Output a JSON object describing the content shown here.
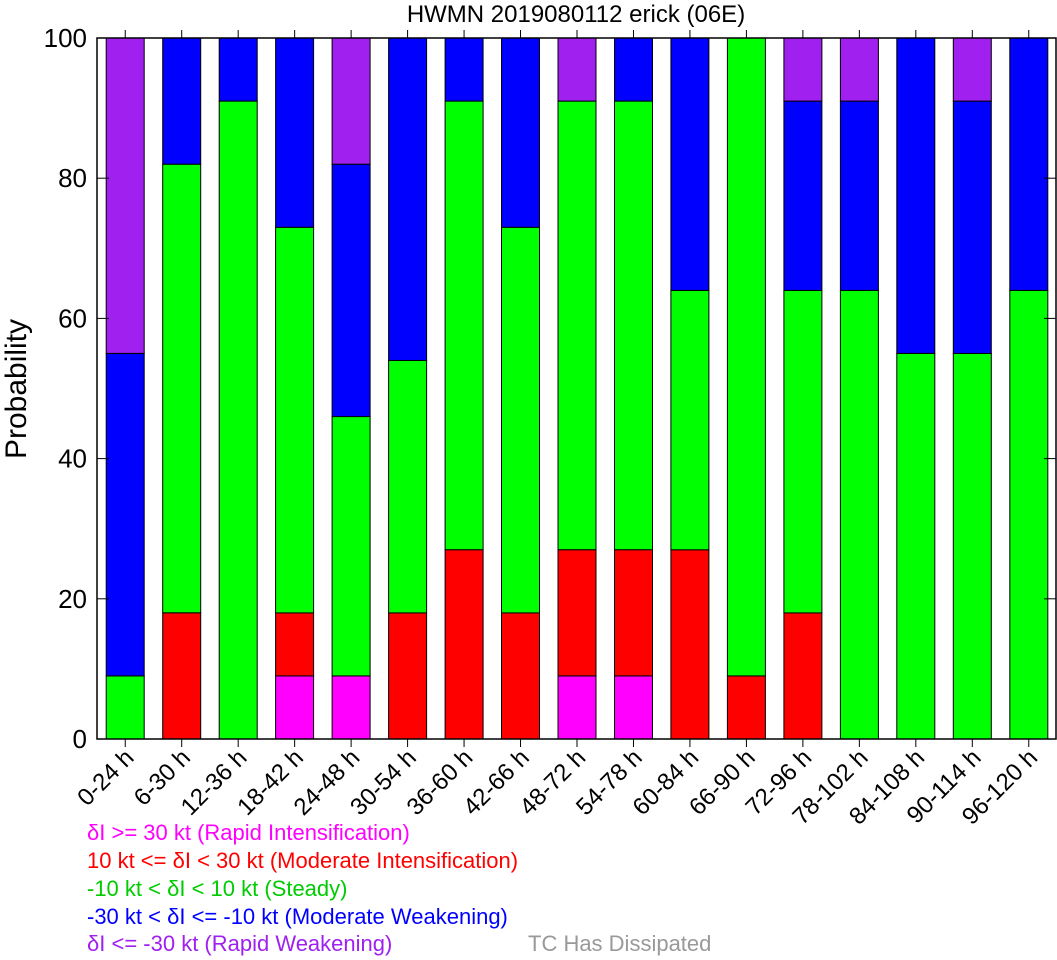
{
  "chart_data": {
    "type": "bar",
    "stacked": true,
    "title": "HWMN 2019080112 erick (06E)",
    "ylabel": "Probability",
    "xlabel": "",
    "ylim": [
      0,
      100
    ],
    "yticks": [
      0,
      20,
      40,
      60,
      80,
      100
    ],
    "grid": false,
    "categories": [
      "0-24 h",
      "6-30 h",
      "12-36 h",
      "18-42 h",
      "24-48 h",
      "30-54 h",
      "36-60 h",
      "42-66 h",
      "48-72 h",
      "54-78 h",
      "60-84 h",
      "66-90 h",
      "72-96 h",
      "78-102 h",
      "84-108 h",
      "90-114 h",
      "96-120 h"
    ],
    "series": [
      {
        "name": "δI >= 30 kt (Rapid Intensification)",
        "color": "#ff00ff",
        "values": [
          0,
          0,
          0,
          9,
          9,
          0,
          0,
          0,
          9,
          9,
          0,
          0,
          0,
          0,
          0,
          0,
          0
        ]
      },
      {
        "name": "10 kt <= δI < 30 kt (Moderate Intensification)",
        "color": "#ff0000",
        "values": [
          0,
          18,
          0,
          9,
          0,
          18,
          27,
          18,
          18,
          18,
          27,
          9,
          18,
          0,
          0,
          0,
          0
        ]
      },
      {
        "name": "-10 kt < δI < 10 kt (Steady)",
        "color": "#00ff00",
        "values": [
          9,
          64,
          91,
          55,
          37,
          36,
          64,
          55,
          64,
          64,
          37,
          91,
          46,
          64,
          55,
          55,
          64
        ]
      },
      {
        "name": "-30 kt < δI <= -10 kt (Moderate Weakening)",
        "color": "#0000ff",
        "values": [
          46,
          18,
          9,
          27,
          36,
          46,
          9,
          27,
          0,
          9,
          36,
          0,
          27,
          27,
          45,
          36,
          36
        ]
      },
      {
        "name": "δI <= -30 kt (Rapid Weakening)",
        "color": "#a020f0",
        "values": [
          45,
          0,
          0,
          0,
          18,
          0,
          0,
          0,
          9,
          0,
          0,
          0,
          9,
          9,
          0,
          9,
          0
        ]
      }
    ]
  },
  "legend": {
    "items": [
      {
        "text": "δI >= 30 kt (Rapid Intensification)",
        "color": "#ff00ff"
      },
      {
        "text": "10 kt <= δI < 30 kt (Moderate Intensification)",
        "color": "#ff0000"
      },
      {
        "text": "-10 kt < δI < 10 kt (Steady)",
        "color": "#00cc00"
      },
      {
        "text": "-30 kt < δI <= -10 kt (Moderate Weakening)",
        "color": "#0000ff"
      },
      {
        "text": "δI <= -30 kt (Rapid Weakening)",
        "color": "#a020f0"
      }
    ],
    "dissipated": {
      "text": "TC Has Dissipated",
      "color": "#999999"
    }
  }
}
